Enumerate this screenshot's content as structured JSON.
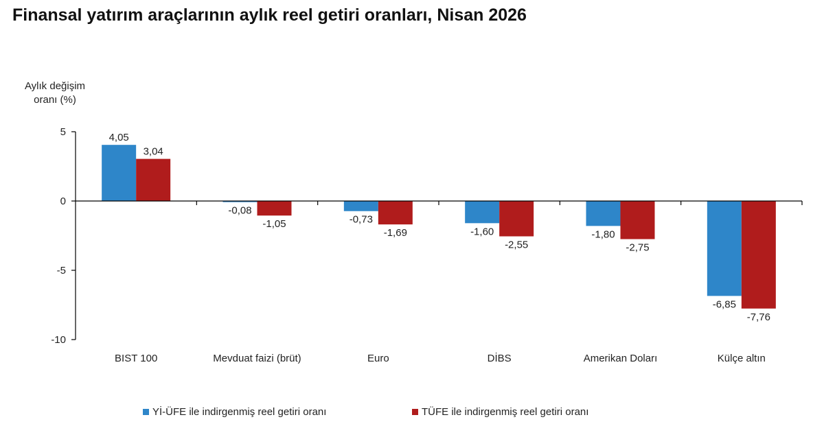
{
  "title": "Finansal yatırım araçlarının aylık reel getiri oranları, Nisan 2026",
  "chart_data": {
    "type": "bar",
    "title": "Finansal yatırım araçlarının aylık reel getiri oranları, Nisan 2026",
    "ylabel": "Aylık değişim oranı (%)",
    "ylim": [
      -10,
      5
    ],
    "yticks": [
      5,
      0,
      -5,
      -10
    ],
    "grid": false,
    "legend_position": "bottom",
    "categories": [
      "BIST 100",
      "Mevduat faizi (brüt)",
      "Euro",
      "DİBS",
      "Amerikan Doları",
      "Külçe altın"
    ],
    "series": [
      {
        "name": "Yİ-ÜFE ile indirgenmiş reel getiri oranı",
        "color": "#2e86c9",
        "values": [
          4.05,
          -0.08,
          -0.73,
          -1.6,
          -1.8,
          -6.85
        ],
        "labels": [
          "4,05",
          "-0,08",
          "-0,73",
          "-1,60",
          "-1,80",
          "-6,85"
        ]
      },
      {
        "name": "TÜFE ile indirgenmiş reel getiri oranı",
        "color": "#b01c1c",
        "values": [
          3.04,
          -1.05,
          -1.69,
          -2.55,
          -2.75,
          -7.76
        ],
        "labels": [
          "3,04",
          "-1,05",
          "-1,69",
          "-2,55",
          "-2,75",
          "-7,76"
        ]
      }
    ]
  },
  "yaxis_label_line1": "Aylık değişim",
  "yaxis_label_line2": "oranı (%)"
}
